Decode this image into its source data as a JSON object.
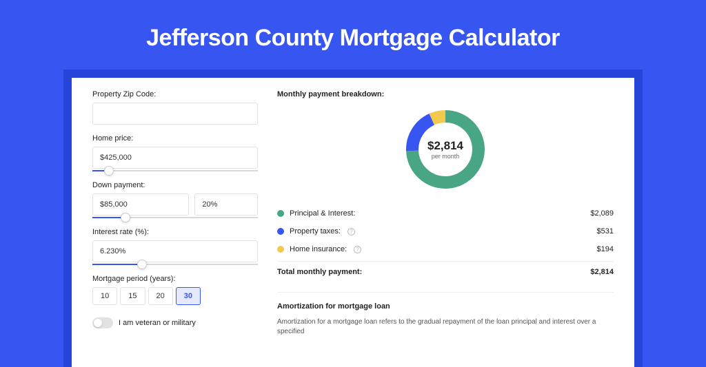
{
  "page": {
    "title": "Jefferson County Mortgage Calculator",
    "background_color": "#3755f0",
    "card_wrapper_color": "#2744d8"
  },
  "form": {
    "zip": {
      "label": "Property Zip Code:",
      "value": ""
    },
    "home_price": {
      "label": "Home price:",
      "value": "$425,000",
      "slider_pct": 10
    },
    "down_payment": {
      "label": "Down payment:",
      "amount": "$85,000",
      "percent": "20%",
      "slider_pct": 20
    },
    "interest_rate": {
      "label": "Interest rate (%):",
      "value": "6.230%",
      "slider_pct": 30
    },
    "period": {
      "label": "Mortgage period (years):",
      "options": [
        "10",
        "15",
        "20",
        "30"
      ],
      "selected_index": 3
    },
    "veteran": {
      "label": "I am veteran or military",
      "checked": false
    }
  },
  "breakdown": {
    "title": "Monthly payment breakdown:",
    "center_amount": "$2,814",
    "center_sub": "per month",
    "segments": [
      {
        "label": "Principal & Interest:",
        "value": "$2,089",
        "color": "#49a684",
        "pct": 74.2
      },
      {
        "label": "Property taxes:",
        "value": "$531",
        "color": "#3755f0",
        "pct": 18.9,
        "info": true
      },
      {
        "label": "Home insurance:",
        "value": "$194",
        "color": "#f2c94c",
        "pct": 6.9,
        "info": true
      }
    ],
    "total": {
      "label": "Total monthly payment:",
      "value": "$2,814"
    },
    "donut": {
      "stroke_width": 18,
      "bg_color": "#f0f0f0"
    }
  },
  "amortization": {
    "title": "Amortization for mortgage loan",
    "text": "Amortization for a mortgage loan refers to the gradual repayment of the loan principal and interest over a specified"
  }
}
